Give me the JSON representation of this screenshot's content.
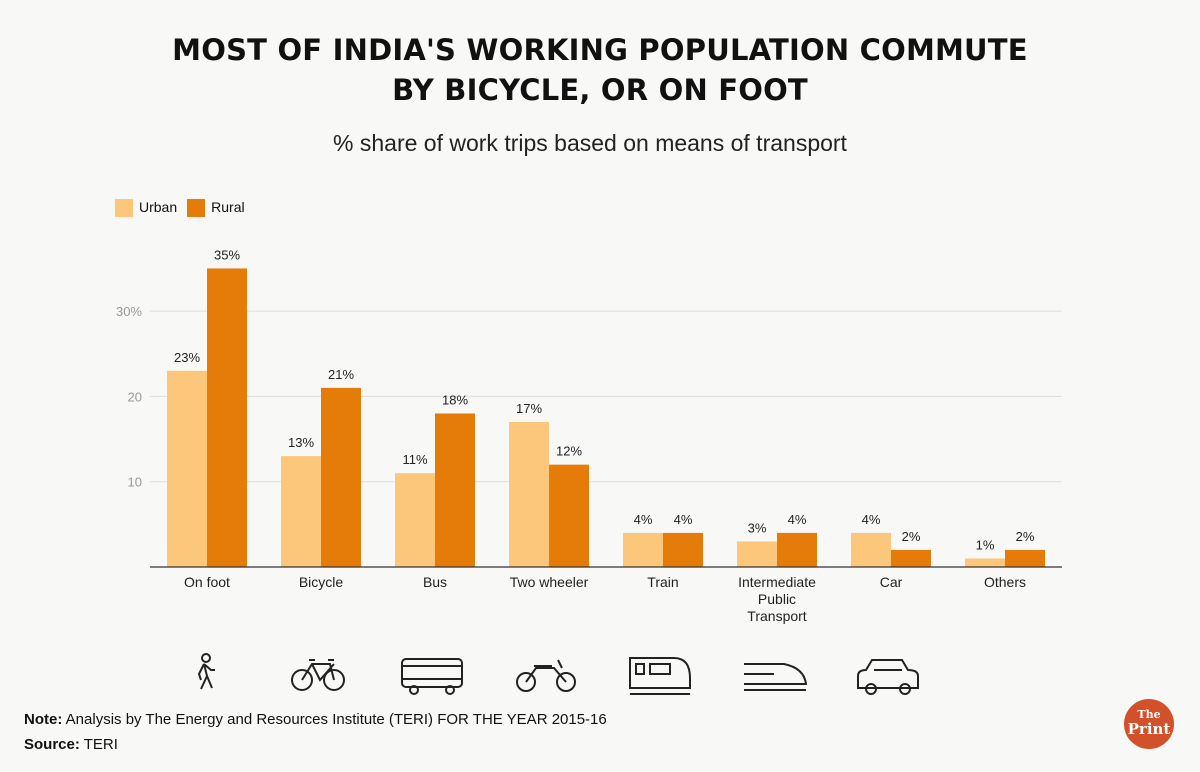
{
  "title_line1": "MOST OF INDIA'S WORKING POPULATION COMMUTE",
  "title_line2": "BY BICYCLE, OR ON FOOT",
  "chart_data": {
    "type": "bar",
    "subtitle": "% share of work trips based on means of transport",
    "categories": [
      "On foot",
      "Bicycle",
      "Bus",
      "Two wheeler",
      "Train",
      "Intermediate Public Transport",
      "Car",
      "Others"
    ],
    "series": [
      {
        "name": "Urban",
        "color": "#fcc77a",
        "values": [
          23,
          13,
          11,
          17,
          4,
          3,
          4,
          1
        ]
      },
      {
        "name": "Rural",
        "color": "#e57c0a",
        "values": [
          35,
          21,
          18,
          12,
          4,
          4,
          2,
          2
        ]
      }
    ],
    "data_labels": {
      "Urban": [
        "23%",
        "13%",
        "11%",
        "17%",
        "4%",
        "3%",
        "4%",
        "1%"
      ],
      "Rural": [
        "35%",
        "21%",
        "18%",
        "12%",
        "4%",
        "4%",
        "2%",
        "2%"
      ]
    },
    "yticks": [
      10,
      20,
      30
    ],
    "ytick_labels": [
      "10",
      "20",
      "30%"
    ],
    "ylim": [
      0,
      35
    ],
    "grid": true,
    "legend": "top-left",
    "icons": [
      "walking-person-icon",
      "bicycle-icon",
      "bus-icon",
      "motorcycle-icon",
      "train-icon",
      "bullet-train-icon",
      "car-icon"
    ]
  },
  "note_label": "Note:",
  "note_text": " Analysis by The Energy and Resources Institute (TERI) FOR THE YEAR 2015-16",
  "source_label": "Source:",
  "source_text": " TERI",
  "logo": "The Print"
}
